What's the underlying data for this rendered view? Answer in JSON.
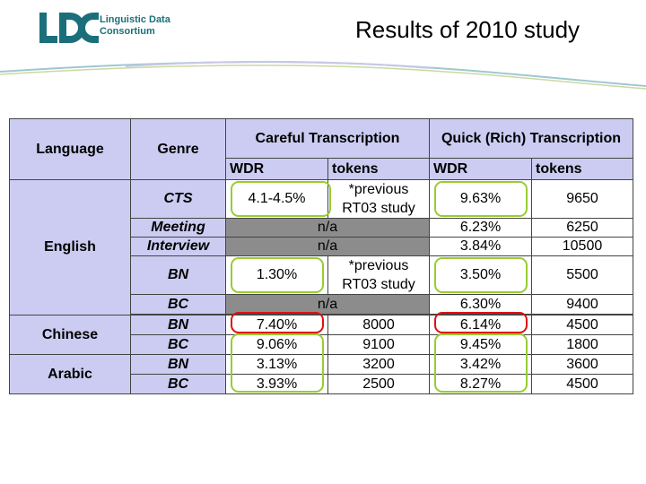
{
  "header": {
    "logo_text_line1": "Linguistic Data",
    "logo_text_line2": "Consortium",
    "title": "Results of 2010 study"
  },
  "table": {
    "col_language": "Language",
    "col_genre": "Genre",
    "group_careful": "Careful Transcription",
    "group_quick": "Quick (Rich) Transcription",
    "sub_wdr": "WDR",
    "sub_tokens": "tokens",
    "lang_english": "English",
    "lang_chinese": "Chinese",
    "lang_arabic": "Arabic",
    "genre_cts": "CTS",
    "genre_meeting": "Meeting",
    "genre_interview": "Interview",
    "genre_bn": "BN",
    "genre_bc": "BC",
    "na": "n/a",
    "prev_line1": "*previous",
    "prev_line2": "RT03 study",
    "en_cts_careful_wdr": "4.1-4.5%",
    "en_cts_quick_wdr": "9.63%",
    "en_cts_quick_tokens": "9650",
    "en_meeting_quick_wdr": "6.23%",
    "en_meeting_quick_tokens": "6250",
    "en_interview_quick_wdr": "3.84%",
    "en_interview_quick_tokens": "10500",
    "en_bn_careful_wdr": "1.30%",
    "en_bn_quick_wdr": "3.50%",
    "en_bn_quick_tokens": "5500",
    "en_bc_quick_wdr": "6.30%",
    "en_bc_quick_tokens": "9400",
    "zh_bn_careful_wdr": "7.40%",
    "zh_bn_careful_tokens": "8000",
    "zh_bn_quick_wdr": "6.14%",
    "zh_bn_quick_tokens": "4500",
    "zh_bc_careful_wdr": "9.06%",
    "zh_bc_careful_tokens": "9100",
    "zh_bc_quick_wdr": "9.45%",
    "zh_bc_quick_tokens": "1800",
    "ar_bn_careful_wdr": "3.13%",
    "ar_bn_careful_tokens": "3200",
    "ar_bn_quick_wdr": "3.42%",
    "ar_bn_quick_tokens": "3600",
    "ar_bc_careful_wdr": "3.93%",
    "ar_bc_careful_tokens": "2500",
    "ar_bc_quick_wdr": "8.27%",
    "ar_bc_quick_tokens": "4500"
  },
  "colors": {
    "header_bg": "#ccccf2",
    "na_bg": "#8c8c8c",
    "highlight_green": "#99cc33",
    "highlight_red": "#dd1111",
    "logo_teal": "#1a6f7a"
  }
}
